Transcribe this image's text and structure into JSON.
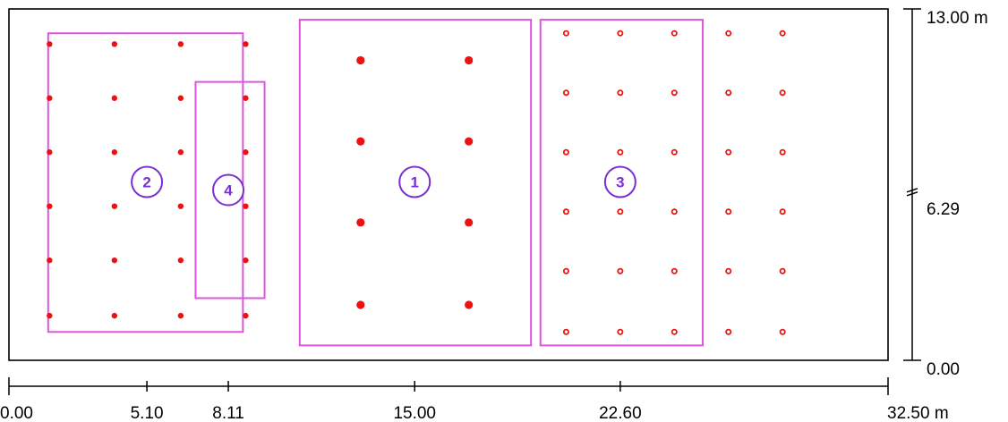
{
  "colors": {
    "zone_outline": "#dd55dd",
    "zone_label": "#7a2fd6",
    "fixture": "#ee1111",
    "frame": "#000000"
  },
  "room": {
    "width_m": 32.5,
    "height_m": 13.0
  },
  "x_axis": {
    "ticks": [
      {
        "value": 0.0,
        "label": "0.00"
      },
      {
        "value": 5.1,
        "label": "5.10"
      },
      {
        "value": 8.11,
        "label": "8.11"
      },
      {
        "value": 15.0,
        "label": "15.00"
      },
      {
        "value": 22.6,
        "label": "22.60"
      },
      {
        "value": 32.5,
        "label": "32.50 m"
      }
    ]
  },
  "y_axis": {
    "ticks": [
      {
        "value": 0.0,
        "label": "0.00"
      },
      {
        "value": 6.29,
        "label": "6.29"
      },
      {
        "value": 13.0,
        "label": "13.00 m"
      }
    ]
  },
  "zones": [
    {
      "id": "1",
      "x0": 10.75,
      "x1": 19.3,
      "y0": 0.55,
      "y1": 12.6
    },
    {
      "id": "2",
      "x0": 1.45,
      "x1": 8.65,
      "y0": 1.05,
      "y1": 12.1
    },
    {
      "id": "3",
      "x0": 19.65,
      "x1": 25.65,
      "y0": 0.55,
      "y1": 12.6
    },
    {
      "id": "4",
      "x0": 6.9,
      "x1": 9.45,
      "y0": 2.3,
      "y1": 10.3
    }
  ],
  "zone_labels": [
    {
      "id": "1",
      "x": 15.0,
      "y": 6.6
    },
    {
      "id": "2",
      "x": 5.1,
      "y": 6.6
    },
    {
      "id": "3",
      "x": 22.6,
      "y": 6.6
    },
    {
      "id": "4",
      "x": 8.11,
      "y": 6.3
    }
  ],
  "fixture_groups": [
    {
      "style": "dot",
      "xs": [
        1.5,
        3.9,
        6.35,
        8.75
      ],
      "ys": [
        11.7,
        9.7,
        7.7,
        5.7,
        3.7,
        1.65
      ]
    },
    {
      "style": "big",
      "xs": [
        13.0,
        17.0
      ],
      "ys": [
        11.1,
        8.1,
        5.1,
        2.05
      ]
    },
    {
      "style": "ring",
      "xs": [
        20.6,
        22.6,
        24.6,
        26.6,
        28.6
      ],
      "ys": [
        12.1,
        9.9,
        7.7,
        5.5,
        3.3,
        1.05
      ]
    }
  ]
}
